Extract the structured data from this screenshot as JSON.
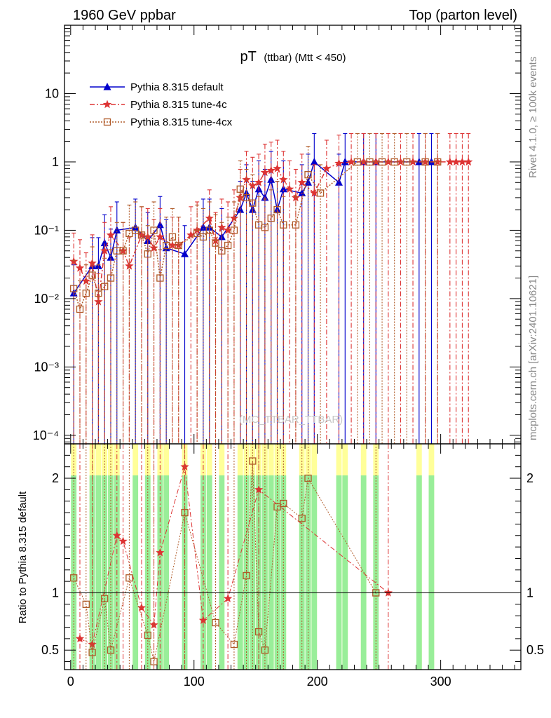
{
  "header": {
    "left": "1960 GeV ppbar",
    "right": "Top (parton level)"
  },
  "side": {
    "rivet": "Rivet 4.1.0, ≥ 100k events",
    "mcplots": "mcplots.cern.ch [arXiv:2401.10621]"
  },
  "chart_data": {
    "type": "line",
    "title_main": "pT",
    "title_sub": "(ttbar) (Mtt < 450)",
    "watermark": "(MC_TTBAR_TTBAR)",
    "xlim": [
      -5,
      365
    ],
    "ylim": [
      7.5e-05,
      100
    ],
    "ratio_ylim": [
      0.33,
      2.3
    ],
    "ratio_label": "Ratio to Pythia 8.315 default",
    "x_ticks": [
      "0",
      "100",
      "200",
      "300"
    ],
    "y_ticks": [
      "10",
      "1",
      "10⁻¹",
      "10⁻²",
      "10⁻³",
      "10⁻⁴"
    ],
    "ratio_ticks": [
      "0.5",
      "1",
      "2"
    ],
    "legend": [
      {
        "label": "Pythia 8.315 default",
        "color": "#0000cc"
      },
      {
        "label": "Pythia 8.315 tune-4c",
        "color": "#dd3333"
      },
      {
        "label": "Pythia 8.315 tune-4cx",
        "color": "#b05a28"
      }
    ],
    "series": [
      {
        "name": "Pythia 8.315 default",
        "x": [
          2.5,
          17.5,
          22.5,
          27.5,
          32.5,
          37.5,
          52.5,
          62.5,
          72.5,
          77.5,
          92.5,
          107.5,
          112.5,
          122.5,
          137.5,
          142.5,
          147.5,
          152.5,
          157.5,
          162.5,
          167.5,
          172.5,
          187.5,
          192.5,
          197.5,
          217.5,
          222.5,
          237.5,
          247.5,
          282.5,
          292.5
        ],
        "values": [
          0.012,
          0.03,
          0.03,
          0.065,
          0.04,
          0.1,
          0.11,
          0.07,
          0.12,
          0.055,
          0.045,
          0.11,
          0.11,
          0.08,
          0.2,
          0.35,
          0.2,
          0.4,
          0.3,
          0.55,
          0.2,
          0.4,
          0.35,
          0.5,
          1.0,
          0.5,
          1.0,
          1.0,
          1.0,
          1.0,
          1.0
        ]
      },
      {
        "name": "Pythia 8.315 tune-4c",
        "x": [
          2.5,
          7.5,
          12.5,
          17.5,
          22.5,
          27.5,
          32.5,
          42.5,
          47.5,
          57.5,
          62.5,
          67.5,
          72.5,
          82.5,
          87.5,
          97.5,
          102.5,
          112.5,
          117.5,
          122.5,
          127.5,
          132.5,
          137.5,
          142.5,
          147.5,
          152.5,
          157.5,
          162.5,
          167.5,
          172.5,
          177.5,
          182.5,
          187.5,
          197.5,
          207.5,
          217.5,
          227.5,
          237.5,
          247.5,
          257.5,
          267.5,
          277.5,
          287.5,
          297.5,
          307.5,
          312.5,
          317.5,
          322.5
        ],
        "values": [
          0.035,
          0.028,
          0.018,
          0.033,
          0.009,
          0.05,
          0.085,
          0.05,
          0.03,
          0.085,
          0.08,
          0.055,
          0.08,
          0.06,
          0.06,
          0.085,
          0.1,
          0.15,
          0.07,
          0.11,
          0.1,
          0.15,
          0.3,
          0.55,
          0.45,
          0.5,
          0.7,
          0.75,
          0.8,
          0.55,
          0.4,
          0.3,
          0.5,
          0.35,
          0.8,
          0.95,
          1.0,
          1.0,
          1.0,
          1.0,
          1.0,
          1.0,
          1.0,
          1.0,
          1.0,
          1.0,
          1.0,
          1.0
        ]
      },
      {
        "name": "Pythia 8.315 tune-4cx",
        "x": [
          2.5,
          7.5,
          12.5,
          17.5,
          22.5,
          27.5,
          32.5,
          37.5,
          42.5,
          47.5,
          52.5,
          57.5,
          62.5,
          67.5,
          72.5,
          77.5,
          82.5,
          87.5,
          102.5,
          107.5,
          112.5,
          117.5,
          122.5,
          127.5,
          132.5,
          137.5,
          142.5,
          147.5,
          152.5,
          157.5,
          162.5,
          167.5,
          172.5,
          182.5,
          192.5,
          202.5,
          232.5,
          242.5,
          252.5,
          262.5,
          272.5,
          287.5,
          297.5
        ],
        "values": [
          0.014,
          0.007,
          0.012,
          0.022,
          0.012,
          0.015,
          0.02,
          0.05,
          0.05,
          0.09,
          0.1,
          0.085,
          0.045,
          0.1,
          0.02,
          0.06,
          0.08,
          0.06,
          0.09,
          0.08,
          0.1,
          0.065,
          0.05,
          0.06,
          0.1,
          0.4,
          0.3,
          0.25,
          0.12,
          0.11,
          0.15,
          0.2,
          0.12,
          0.12,
          0.65,
          0.35,
          1.0,
          1.0,
          1.0,
          1.0,
          1.0,
          1.0,
          1.0
        ]
      }
    ],
    "ratio_series": [
      {
        "name": "Pythia 8.315 tune-4c",
        "x": [
          7.5,
          17.5,
          37.5,
          42.5,
          57.5,
          67.5,
          72.5,
          92.5,
          107.5,
          127.5,
          152.5,
          257.5
        ],
        "values": [
          0.6,
          0.55,
          1.5,
          1.45,
          0.87,
          0.72,
          1.35,
          2.1,
          0.76,
          0.95,
          1.9,
          1.0
        ]
      },
      {
        "name": "Pythia 8.315 tune-4cx",
        "x": [
          2.5,
          12.5,
          17.5,
          27.5,
          32.5,
          47.5,
          62.5,
          67.5,
          92.5,
          117.5,
          132.5,
          142.5,
          147.5,
          152.5,
          157.5,
          167.5,
          172.5,
          187.5,
          192.5,
          247.5
        ],
        "values": [
          1.13,
          0.9,
          0.48,
          0.95,
          0.5,
          1.13,
          0.63,
          0.4,
          1.7,
          0.74,
          0.55,
          1.15,
          2.15,
          0.66,
          0.5,
          1.75,
          1.78,
          1.65,
          2.0,
          1.0
        ]
      }
    ]
  }
}
